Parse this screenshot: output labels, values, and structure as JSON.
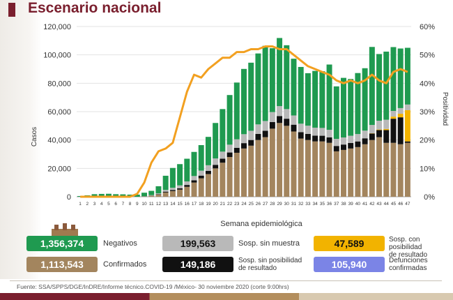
{
  "title": "Escenario nacional",
  "colors": {
    "title": "#7a1f2e",
    "negativos": "#1f9a50",
    "sin_muestra": "#b9b9b9",
    "sin_posibilidad": "#111111",
    "con_posibilidad": "#f2b300",
    "confirmados": "#a3855e",
    "defunciones": "#7b84e6",
    "positividad": "#f2a020"
  },
  "chart_data": {
    "type": "bar",
    "stacked": true,
    "xlabel": "Semana epidemiológica",
    "ylabel": "Casos",
    "y2label": "Positividad",
    "ylim": [
      0,
      120000
    ],
    "y2lim": [
      0,
      60
    ],
    "yticks": [
      "0",
      "20,000",
      "40,000",
      "60,000",
      "80,000",
      "100,000",
      "120,000"
    ],
    "y2ticks": [
      "0%",
      "10%",
      "20%",
      "30%",
      "40%",
      "50%",
      "60%"
    ],
    "categories": [
      "1",
      "2",
      "3",
      "4",
      "5",
      "6",
      "7",
      "8",
      "9",
      "10",
      "11",
      "12",
      "13",
      "14",
      "15",
      "16",
      "17",
      "18",
      "19",
      "20",
      "21",
      "22",
      "23",
      "24",
      "25",
      "26",
      "27",
      "28",
      "29",
      "30",
      "31",
      "32",
      "33",
      "34",
      "35",
      "36",
      "37",
      "38",
      "39",
      "40",
      "41",
      "42",
      "43",
      "44",
      "45",
      "46",
      "47"
    ],
    "series": [
      {
        "key": "confirmados",
        "values": [
          0,
          0,
          0,
          0,
          0,
          0,
          0,
          0,
          0,
          200,
          700,
          1500,
          3000,
          4000,
          5000,
          7000,
          10000,
          13000,
          16000,
          20000,
          24000,
          28000,
          31000,
          34000,
          36000,
          40000,
          42000,
          48000,
          52000,
          50000,
          46000,
          41000,
          40000,
          39000,
          39000,
          38000,
          32000,
          33000,
          34000,
          35000,
          37000,
          40000,
          42000,
          38000,
          38000,
          37000,
          38000
        ]
      },
      {
        "key": "sin_posibilidad",
        "values": [
          0,
          0,
          0,
          0,
          0,
          0,
          0,
          0,
          0,
          50,
          150,
          300,
          600,
          800,
          1000,
          1300,
          1600,
          1900,
          2200,
          2500,
          2800,
          3200,
          3500,
          3800,
          4000,
          4300,
          4500,
          4700,
          4900,
          5000,
          4800,
          4500,
          4300,
          4100,
          4000,
          3900,
          3800,
          3800,
          3900,
          4000,
          4200,
          4600,
          5000,
          9000,
          17000,
          19000,
          1000
        ]
      },
      {
        "key": "con_posibilidad",
        "values": [
          0,
          0,
          0,
          0,
          0,
          0,
          0,
          0,
          0,
          0,
          0,
          0,
          0,
          0,
          0,
          0,
          0,
          0,
          0,
          0,
          0,
          0,
          0,
          0,
          0,
          0,
          0,
          0,
          0,
          0,
          0,
          0,
          0,
          0,
          0,
          0,
          0,
          0,
          0,
          0,
          0,
          200,
          400,
          800,
          1500,
          2500,
          22000
        ]
      },
      {
        "key": "sin_muestra",
        "values": [
          0,
          0,
          0,
          0,
          0,
          0,
          0,
          0,
          0,
          100,
          300,
          600,
          1200,
          1500,
          2000,
          2500,
          3000,
          3500,
          4000,
          4500,
          5000,
          5500,
          6000,
          6300,
          6500,
          6700,
          6900,
          7000,
          7000,
          6800,
          6500,
          6000,
          5800,
          5600,
          5500,
          5300,
          5000,
          5000,
          5100,
          5200,
          5400,
          5800,
          6200,
          6500,
          4000,
          4000,
          4000
        ]
      },
      {
        "key": "negativos",
        "values": [
          500,
          1000,
          1800,
          2000,
          2100,
          1800,
          1700,
          1500,
          1500,
          2500,
          3000,
          5000,
          10000,
          14000,
          15000,
          16000,
          17000,
          18000,
          20000,
          25000,
          30000,
          35000,
          40000,
          46000,
          48000,
          50000,
          53000,
          45000,
          48000,
          45000,
          40000,
          40000,
          37000,
          40000,
          40000,
          46000,
          37000,
          42000,
          40000,
          43000,
          44000,
          55000,
          47000,
          48000,
          45000,
          42000,
          40000
        ]
      }
    ],
    "positividad": [
      0,
      0,
      0,
      0,
      0,
      0,
      0,
      0,
      1,
      5,
      12,
      16,
      17,
      19,
      28,
      37,
      43,
      42,
      45,
      47,
      49,
      49,
      51,
      51,
      52,
      52,
      53,
      53,
      52,
      52,
      50,
      48,
      46,
      45,
      44,
      43,
      41,
      40,
      41,
      40,
      41,
      43,
      41,
      40,
      44,
      45,
      44
    ]
  },
  "legend": {
    "negativos": {
      "value": "1,356,374",
      "label": "Negativos"
    },
    "sin_muestra": {
      "value": "199,563",
      "label": "Sosp. sin muestra"
    },
    "con_posibilidad": {
      "value": "47,589",
      "label_lines": [
        "Sosp. con posibilidad",
        "de resultado"
      ]
    },
    "confirmados": {
      "value": "1,113,543",
      "label": "Confirmados"
    },
    "sin_posibilidad": {
      "value": "149,186",
      "label_lines": [
        "Sosp. sin posibilidad",
        "de resultado"
      ]
    },
    "defunciones": {
      "value": "105,940",
      "label_lines": [
        "Defunciones",
        "confirmadas"
      ]
    }
  },
  "footer": "Fuente: SSA/SPPS/DGE/InDRE/Informe técnico.COVID-19 /México- 30 noviembre 2020 (corte 9:00hrs)"
}
